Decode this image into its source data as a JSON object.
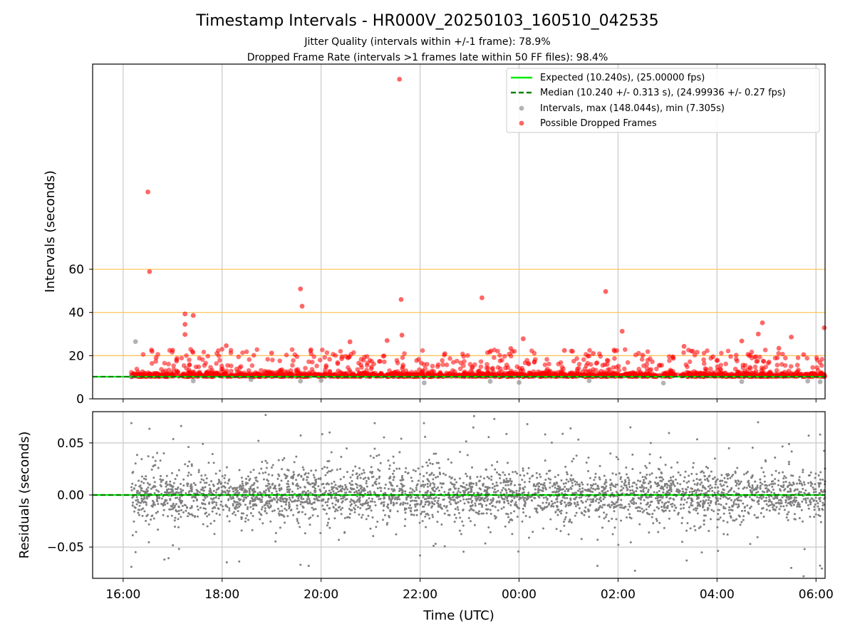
{
  "chart_data": {
    "type": "scatter",
    "title": "Timestamp Intervals - HR000V_20250103_160510_042535",
    "subtitles": [
      "Jitter Quality (intervals within +/-1 frame): 78.9%",
      "Dropped Frame Rate (intervals >1 frames late within 50 FF files): 98.4%"
    ],
    "xlabel": "Time (UTC)",
    "x_range": [
      "2025-01-03 15:23",
      "2025-01-04 06:11"
    ],
    "x_ticks": [
      "16:00",
      "18:00",
      "20:00",
      "22:00",
      "00:00",
      "02:00",
      "04:00",
      "06:00"
    ],
    "grid": true,
    "panels": [
      {
        "name": "intervals",
        "ylabel": "Intervals (seconds)",
        "ylim": [
          0,
          155
        ],
        "y_ticks": [
          "0",
          "20",
          "40",
          "60"
        ],
        "reference_lines": [
          20,
          40,
          60
        ],
        "reference_color": "#ffc04c",
        "expected_value": 10.24,
        "median_value": 10.24,
        "series": [
          {
            "name": "Intervals, max (148.044s), min (7.305s)",
            "color": "#808080",
            "points": [
              [
                "2025-01-03 16:10",
                10.2
              ],
              [
                "2025-01-03 16:15",
                26.5
              ],
              [
                "2025-01-03 17:25",
                8.3
              ],
              [
                "2025-01-03 18:35",
                8.9
              ],
              [
                "2025-01-03 19:35",
                8.2
              ],
              [
                "2025-01-03 20:00",
                8.5
              ],
              [
                "2025-01-03 22:05",
                7.4
              ],
              [
                "2025-01-03 23:25",
                8.1
              ],
              [
                "2025-01-04 00:00",
                7.6
              ],
              [
                "2025-01-04 01:25",
                8.4
              ],
              [
                "2025-01-04 02:55",
                7.3
              ],
              [
                "2025-01-04 04:30",
                8.0
              ],
              [
                "2025-01-04 05:50",
                8.2
              ],
              [
                "2025-01-04 06:05",
                7.9
              ]
            ]
          },
          {
            "name": "Possible Dropped Frames",
            "color": "#ff0000",
            "points": [
              [
                "2025-01-03 21:35",
                148.0
              ],
              [
                "2025-01-03 16:30",
                95.8
              ],
              [
                "2025-01-03 16:32",
                58.9
              ],
              [
                "2025-01-03 19:35",
                50.9
              ],
              [
                "2025-01-03 19:37",
                42.9
              ],
              [
                "2025-01-03 21:37",
                46.0
              ],
              [
                "2025-01-03 23:15",
                46.8
              ],
              [
                "2025-01-04 01:45",
                49.7
              ],
              [
                "2025-01-03 17:15",
                39.3
              ],
              [
                "2025-01-03 17:25",
                38.6
              ],
              [
                "2025-01-03 17:15",
                34.5
              ],
              [
                "2025-01-03 17:15",
                29.8
              ],
              [
                "2025-01-03 21:38",
                29.5
              ],
              [
                "2025-01-04 02:05",
                31.3
              ],
              [
                "2025-01-04 04:55",
                35.2
              ],
              [
                "2025-01-04 06:10",
                32.9
              ],
              [
                "2025-01-04 05:30",
                28.6
              ],
              [
                "2025-01-04 04:50",
                30.0
              ],
              [
                "2025-01-04 04:30",
                26.8
              ],
              [
                "2025-01-04 00:05",
                27.8
              ],
              [
                "2025-01-03 21:20",
                27.0
              ],
              [
                "2025-01-03 20:35",
                26.4
              ],
              [
                "2025-01-03 16:35",
                22.0
              ],
              [
                "2025-01-03 16:40",
                19.0
              ],
              [
                "2025-01-03 17:00",
                22.5
              ],
              [
                "2025-01-03 18:05",
                24.6
              ],
              [
                "2025-01-03 19:00",
                21.2
              ],
              [
                "2025-01-03 20:25",
                18.6
              ],
              [
                "2025-01-03 22:30",
                20.9
              ],
              [
                "2025-01-03 23:50",
                23.3
              ],
              [
                "2025-01-04 00:55",
                22.4
              ],
              [
                "2025-01-04 01:30",
                21.0
              ],
              [
                "2025-01-04 02:30",
                20.2
              ],
              [
                "2025-01-04 03:20",
                24.3
              ],
              [
                "2025-01-04 03:55",
                19.5
              ],
              [
                "2025-01-04 05:15",
                23.4
              ],
              [
                "2025-01-04 05:45",
                20.5
              ]
            ]
          }
        ]
      },
      {
        "name": "residuals",
        "ylabel": "Residuals (seconds)",
        "ylim": [
          -0.08,
          0.08
        ],
        "y_ticks": [
          "0.05",
          "0.00",
          "−0.05"
        ],
        "expected_value": 0.0,
        "median_value": 0.0,
        "series": [
          {
            "name": "residuals",
            "color": "#808080",
            "points": [
              [
                "2025-01-03 16:10",
                0.069
              ],
              [
                "2025-01-03 16:10",
                -0.069
              ],
              [
                "2025-01-03 16:50",
                -0.062
              ],
              [
                "2025-01-03 19:35",
                -0.067
              ],
              [
                "2025-01-03 19:45",
                -0.068
              ],
              [
                "2025-01-03 22:00",
                -0.058
              ],
              [
                "2025-01-04 01:35",
                -0.068
              ],
              [
                "2025-01-04 05:30",
                -0.07
              ],
              [
                "2025-01-04 05:45",
                -0.078
              ],
              [
                "2025-01-04 06:05",
                0.058
              ],
              [
                "2025-01-04 00:10",
                0.068
              ],
              [
                "2025-01-03 23:30",
                0.073
              ],
              [
                "2025-01-03 21:05",
                0.069
              ],
              [
                "2025-01-04 02:15",
                0.065
              ]
            ]
          }
        ]
      }
    ]
  },
  "legend": {
    "placement": "top-right",
    "entries": [
      {
        "label": "Expected (10.240s), (25.00000 fps)",
        "marker": "solid-line",
        "color": "#00ee00"
      },
      {
        "label": "Median (10.240 +/- 0.313 s), (24.99936 +/- 0.27 fps)",
        "marker": "dashed-line",
        "color": "#008000"
      },
      {
        "label": "Intervals, max (148.044s), min (7.305s)",
        "marker": "dot",
        "color": "#808080"
      },
      {
        "label": "Possible Dropped Frames",
        "marker": "dot",
        "color": "#ff0000"
      }
    ]
  }
}
